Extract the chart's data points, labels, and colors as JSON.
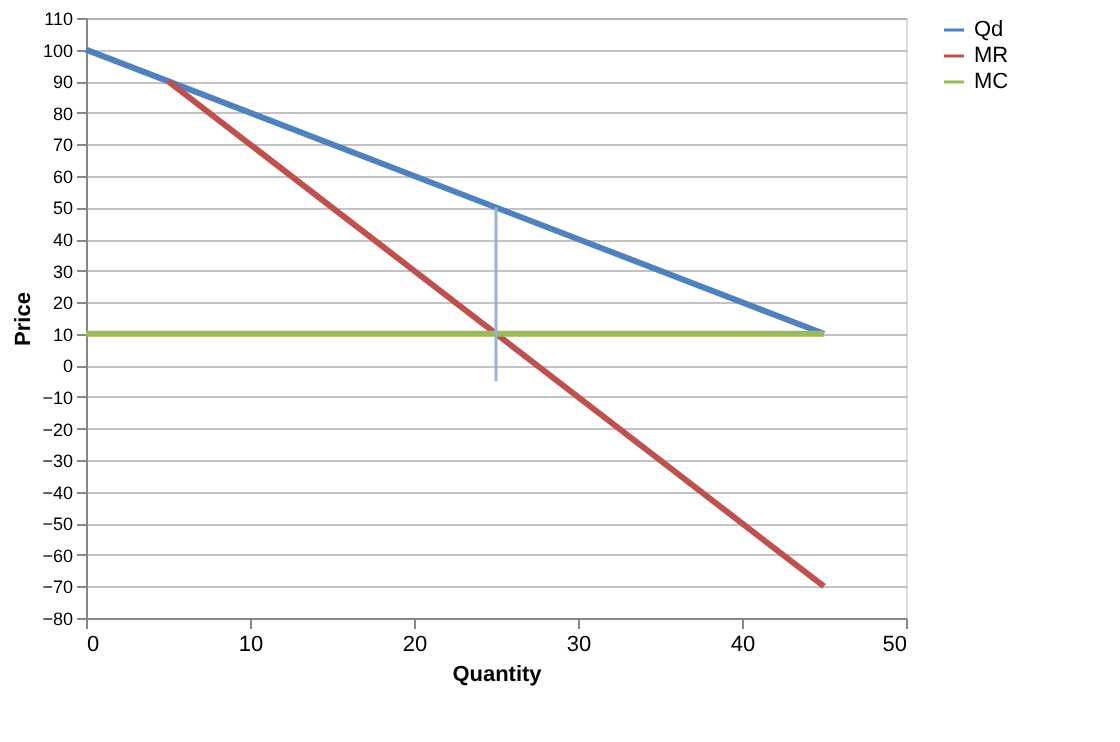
{
  "chart_data": {
    "type": "line",
    "xlabel": "Quantity",
    "ylabel": "Price",
    "xlim": [
      0,
      50
    ],
    "xticks": [
      0,
      10,
      20,
      30,
      40,
      50
    ],
    "ylim": [
      -80,
      110
    ],
    "yticks": [
      -80,
      -70,
      -60,
      -50,
      -40,
      -30,
      -20,
      -10,
      0,
      10,
      20,
      30,
      40,
      50,
      60,
      70,
      80,
      90,
      100,
      110
    ],
    "grid": "y",
    "legend": "right",
    "marker": "none",
    "line_style": "solid",
    "series": [
      {
        "name": "Qd",
        "color": "#4f81bd",
        "x": [
          0,
          45
        ],
        "values": [
          100,
          10
        ]
      },
      {
        "name": "MR",
        "color": "#c0504d",
        "x": [
          5,
          45
        ],
        "values": [
          90,
          -70
        ]
      },
      {
        "name": "MC",
        "color": "#9bbb59",
        "x": [
          0,
          45
        ],
        "values": [
          10,
          10
        ]
      },
      {
        "color": "#95b3d7",
        "x": [
          25,
          25
        ],
        "values": [
          50,
          -5
        ]
      }
    ]
  }
}
